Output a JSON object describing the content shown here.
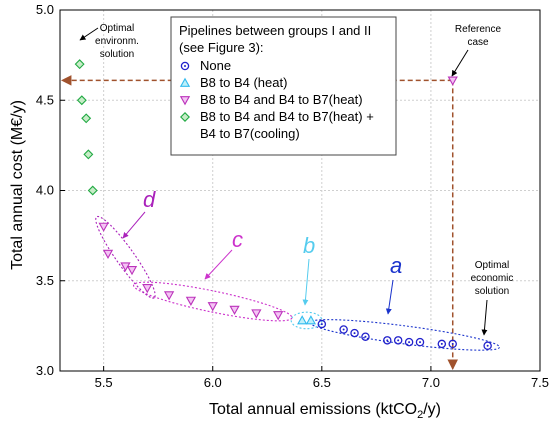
{
  "chart_data": {
    "type": "scatter",
    "xlabel_main": "Total annual emissions (ktCO",
    "xlabel_sub": "2",
    "xlabel_end": "/y)",
    "ylabel": "Total annual cost (M€/y)",
    "xlim": [
      5.3,
      7.5
    ],
    "ylim": [
      3.0,
      5.0
    ],
    "xticks": [
      "5.5",
      "6.0",
      "6.5",
      "7.0",
      "7.5"
    ],
    "yticks": [
      "3.0",
      "3.5",
      "4.0",
      "4.5",
      "5.0"
    ],
    "grid": true,
    "legend_title": [
      "Pipelines between groups I and II",
      "(see Figure 3):"
    ],
    "legend_placement": "top-center",
    "series": [
      {
        "name": "None",
        "marker": "circle-dot",
        "color": "#2222cc",
        "points": [
          [
            6.5,
            3.26
          ],
          [
            6.6,
            3.23
          ],
          [
            6.65,
            3.21
          ],
          [
            6.7,
            3.19
          ],
          [
            6.8,
            3.17
          ],
          [
            6.85,
            3.17
          ],
          [
            6.9,
            3.16
          ],
          [
            6.95,
            3.16
          ],
          [
            7.05,
            3.15
          ],
          [
            7.1,
            3.15
          ],
          [
            7.26,
            3.14
          ]
        ]
      },
      {
        "name": "B8 to B4 (heat)",
        "marker": "triangle-up",
        "color": "#33bbee",
        "points": [
          [
            6.41,
            3.28
          ],
          [
            6.45,
            3.28
          ]
        ]
      },
      {
        "name": "B8 to B4 and B4 to B7(heat)",
        "marker": "triangle-down",
        "color": "#bb33bb",
        "points": [
          [
            5.5,
            3.8
          ],
          [
            5.52,
            3.65
          ],
          [
            5.6,
            3.58
          ],
          [
            5.63,
            3.56
          ],
          [
            5.7,
            3.46
          ],
          [
            5.8,
            3.42
          ],
          [
            5.9,
            3.39
          ],
          [
            6.0,
            3.36
          ],
          [
            6.1,
            3.34
          ],
          [
            6.2,
            3.32
          ],
          [
            6.3,
            3.31
          ]
        ]
      },
      {
        "name": "B8 to B4 and B4 to B7(heat) +",
        "name_line2": "B4 to B7(cooling)",
        "marker": "diamond",
        "color": "#22aa44",
        "points": [
          [
            5.39,
            4.7
          ],
          [
            5.4,
            4.5
          ],
          [
            5.42,
            4.4
          ],
          [
            5.43,
            4.2
          ],
          [
            5.45,
            4.0
          ]
        ]
      }
    ],
    "reference_point": [
      7.1,
      4.61
    ],
    "annotations": {
      "optimal_env": [
        "Optimal",
        "environm.",
        "solution"
      ],
      "reference": [
        "Reference",
        "case"
      ],
      "optimal_econ": [
        "Optimal",
        "economic",
        "solution"
      ]
    },
    "clusters": [
      {
        "label": "a",
        "color": "#1a33cc"
      },
      {
        "label": "b",
        "color": "#55ccee"
      },
      {
        "label": "c",
        "color": "#cc33cc"
      },
      {
        "label": "d",
        "color": "#aa22bb"
      }
    ],
    "colors": {
      "arrow_brown": "#a0522d"
    }
  }
}
